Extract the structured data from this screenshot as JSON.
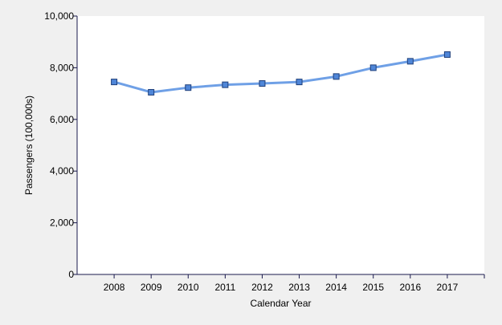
{
  "chart_data": {
    "type": "line",
    "title": "",
    "xlabel": "Calendar Year",
    "ylabel": "Passengers (100,000s)",
    "categories": [
      "2008",
      "2009",
      "2010",
      "2011",
      "2012",
      "2013",
      "2014",
      "2015",
      "2016",
      "2017"
    ],
    "series": [
      {
        "values": [
          7450,
          7050,
          7230,
          7340,
          7390,
          7450,
          7660,
          8000,
          8250,
          8510
        ]
      }
    ],
    "ylim": [
      0,
      10000
    ],
    "yticks": [
      0,
      2000,
      4000,
      6000,
      8000,
      10000
    ],
    "ytick_labels": [
      "0",
      "2,000",
      "4,000",
      "6,000",
      "8,000",
      "10,000"
    ],
    "grid": false,
    "legend": "none",
    "colors": {
      "line": "#6fa0e6",
      "marker_fill": "#4f86d8",
      "marker_stroke": "#1f3f7a",
      "axis": "#1a1a4d",
      "plot_background": "#ffffff",
      "background": "#f0f0f0"
    }
  }
}
